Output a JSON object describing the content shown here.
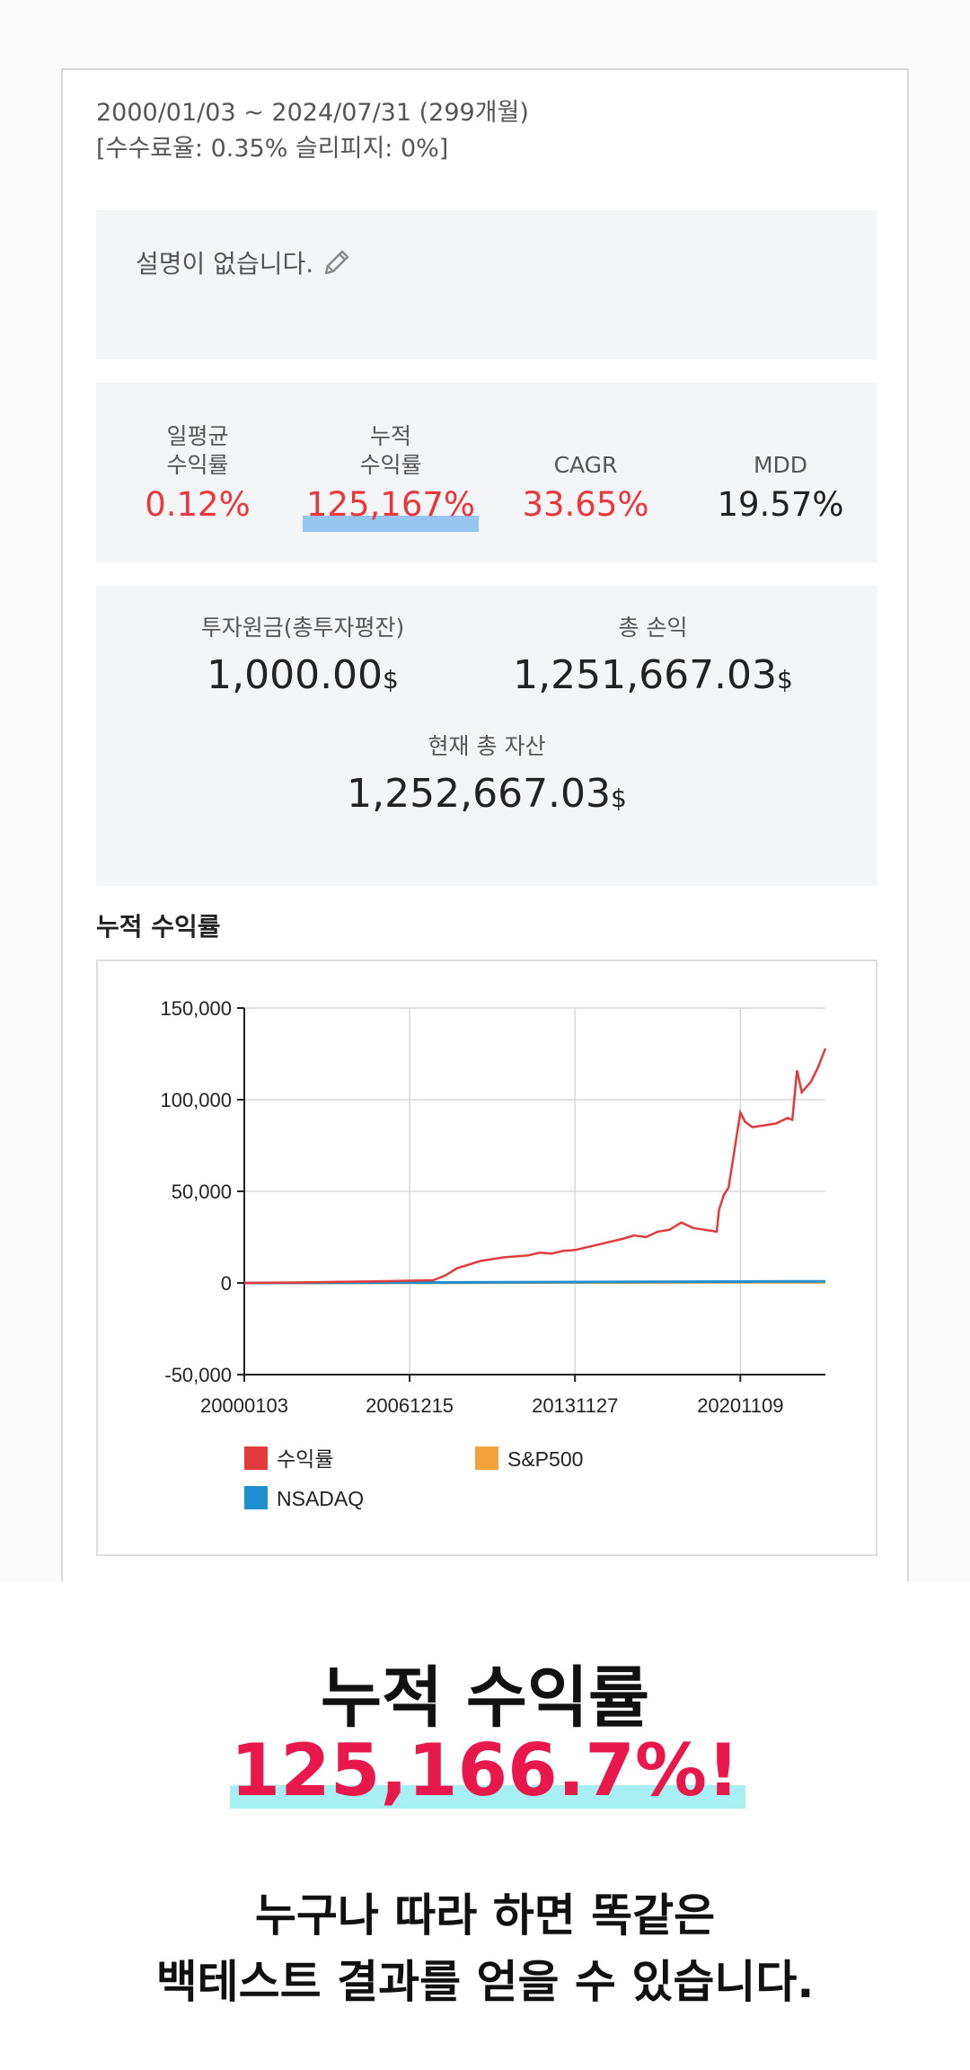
{
  "header": {
    "period": "2000/01/03 ~ 2024/07/31 (299개월)",
    "fees": "[수수료율: 0.35% 슬리피지: 0%]"
  },
  "description": {
    "text": "설명이 없습니다."
  },
  "stats": [
    {
      "label": "일평균\n수익률",
      "value": "0.12%",
      "color": "#e8383d"
    },
    {
      "label": "누적\n수익률",
      "value": "125,167%",
      "color": "#e8383d",
      "highlight": true
    },
    {
      "label": "CAGR",
      "value": "33.65%",
      "color": "#e8383d"
    },
    {
      "label": "MDD",
      "value": "19.57%",
      "color": "#222222"
    }
  ],
  "investment": {
    "principal_label": "투자원금(총투자평잔)",
    "principal_value": "1,000.00",
    "profit_label": "총 손익",
    "profit_value": "1,251,667.03",
    "assets_label": "현재 총 자산",
    "assets_value": "1,252,667.03",
    "unit": "$"
  },
  "chart_section": {
    "title": "누적 수익률"
  },
  "chart_data": {
    "type": "line",
    "ylim": [
      -50000,
      150000
    ],
    "yticks": [
      150000,
      100000,
      50000,
      0,
      -50000
    ],
    "ytick_labels": [
      "150,000",
      "100,000",
      "50,000",
      "0",
      "-50,000"
    ],
    "xtick_labels": [
      "20000103",
      "20061215",
      "20131127",
      "20201109"
    ],
    "xtick_positions": [
      0,
      7,
      14,
      21
    ],
    "xlim": [
      0,
      24.6
    ],
    "grid": true,
    "legend_position": "bottom",
    "series": [
      {
        "name": "수익률",
        "color": "#e23b3b",
        "x": [
          0,
          2,
          4,
          6,
          8,
          8.5,
          9,
          9.5,
          10,
          11,
          12,
          12.5,
          13,
          13.5,
          14,
          15,
          16,
          16.5,
          17,
          17.5,
          18,
          18.5,
          19,
          19.5,
          20,
          20.1,
          20.3,
          20.5,
          21,
          21.2,
          21.5,
          22,
          22.5,
          23,
          23.2,
          23.4,
          23.6,
          23.8,
          24,
          24.3,
          24.6
        ],
        "y": [
          0,
          200,
          600,
          1000,
          1500,
          4000,
          8000,
          10000,
          12000,
          14000,
          15000,
          16500,
          16000,
          17500,
          18000,
          21000,
          24000,
          26000,
          25000,
          28000,
          29000,
          33000,
          30000,
          29000,
          28000,
          40000,
          48000,
          52000,
          93000,
          88000,
          85000,
          86000,
          87000,
          90000,
          89000,
          116000,
          104000,
          107000,
          110000,
          118000,
          128000
        ]
      },
      {
        "name": "S&P500",
        "color": "#f2a23a",
        "x": [
          0,
          24.6
        ],
        "y": [
          0,
          400
        ]
      },
      {
        "name": "NSADAQ",
        "color": "#1f8fd0",
        "x": [
          0,
          24.6
        ],
        "y": [
          0,
          900
        ]
      }
    ]
  },
  "promo": {
    "headline": "누적 수익률",
    "percent": "125,166.7%!",
    "line1": "누구나 따라 하면 똑같은",
    "line2": "백테스트 결과를 얻을 수 있습니다."
  }
}
